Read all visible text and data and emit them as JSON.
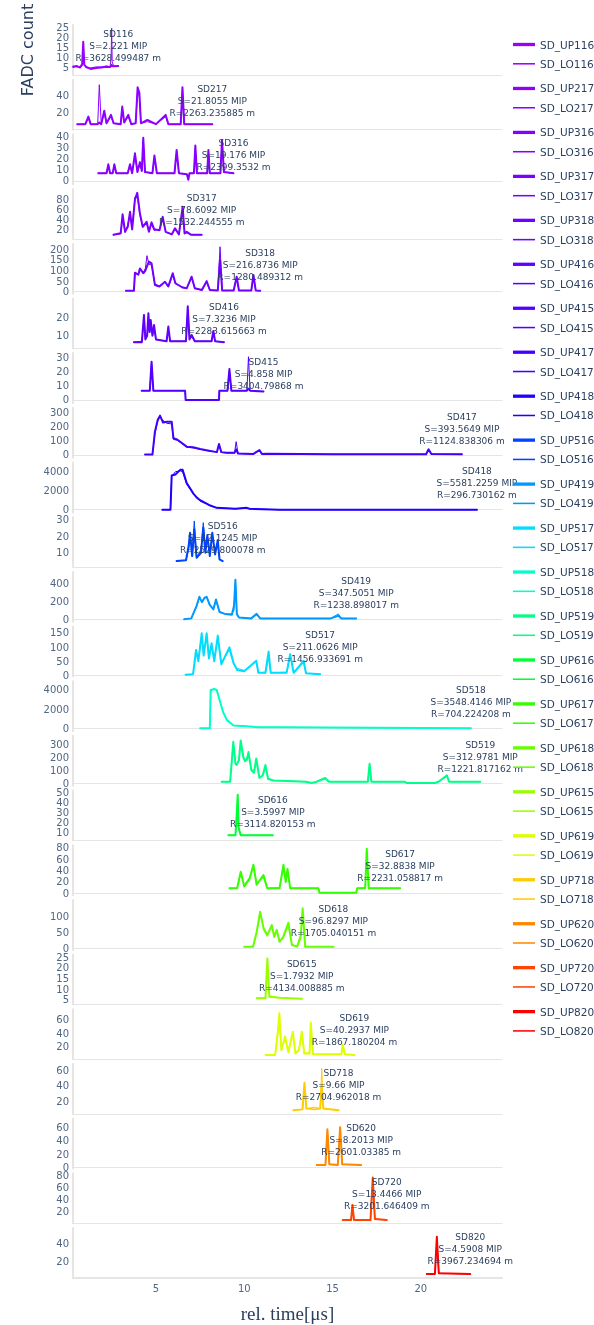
{
  "chart_data": [
    {
      "type": "line",
      "ylabel": "FADC count",
      "legend": "right",
      "marker": "none",
      "tick_labels": "y",
      "xlim": [
        0.3,
        24.6
      ],
      "ylim": [
        1.5,
        26.3
      ],
      "yticks": [
        5,
        10,
        15,
        20,
        25
      ],
      "annotations": [
        "SD116",
        "S=2.221 MIP",
        "R=3628.499487 m"
      ],
      "x": [
        0.31,
        0.5,
        0.7,
        0.82,
        0.88,
        0.94,
        1.05,
        1.3,
        1.6,
        1.9,
        2.2,
        2.4,
        2.46,
        2.49,
        2.52,
        2.6,
        2.86
      ],
      "series": [
        {
          "name": "SD_UP116",
          "color": "#9900ff",
          "values": [
            5.5,
            6,
            5.2,
            7,
            18,
            6.5,
            5.5,
            4.5,
            5,
            5.2,
            5.6,
            5.5,
            6,
            6.5,
            6,
            5.8,
            6
          ]
        },
        {
          "name": "SD_LO116",
          "color": "#9900ff",
          "values": [
            6,
            5.5,
            5.5,
            6,
            16,
            7,
            5,
            5,
            5.5,
            5.5,
            6,
            5.5,
            10,
            24.7,
            8,
            6,
            5.8
          ]
        }
      ]
    },
    {
      "type": "line",
      "legend": "right",
      "marker": "none",
      "tick_labels": "y",
      "xlim": [
        0.3,
        24.6
      ],
      "ylim": [
        -0.6,
        59
      ],
      "yticks": [
        20,
        40
      ],
      "annotations": [
        "SD217",
        "S=21.8055 MIP",
        "R=2263.235885 m"
      ],
      "x": [
        0.54,
        1.0,
        1.17,
        1.3,
        1.7,
        1.79,
        1.9,
        2.07,
        2.2,
        2.45,
        2.6,
        3.0,
        3.09,
        3.2,
        3.43,
        3.6,
        3.85,
        3.96,
        4.06,
        4.15,
        4.51,
        5.0,
        5.55,
        5.7,
        6.4,
        6.5,
        6.6,
        7.3,
        8.19
      ],
      "series": [
        {
          "name": "SD_UP217",
          "color": "#9000ff",
          "values": [
            6,
            6,
            15,
            6,
            6,
            8,
            6,
            22,
            7,
            17,
            7,
            6,
            27,
            8,
            17,
            6,
            7,
            50,
            43,
            7,
            11,
            6,
            17,
            6,
            6,
            50,
            6,
            6,
            6
          ]
        },
        {
          "name": "SD_LO217",
          "color": "#9000ff",
          "values": [
            6,
            6,
            13,
            6,
            6,
            53,
            6,
            20,
            7,
            15,
            7,
            6,
            24,
            8,
            15,
            6,
            7,
            47,
            38,
            7,
            9,
            6,
            15,
            6,
            6,
            48,
            6,
            6,
            6
          ]
        }
      ]
    },
    {
      "type": "line",
      "legend": "right",
      "marker": "none",
      "tick_labels": "y",
      "xlim": [
        0.3,
        24.6
      ],
      "ylim": [
        -3.1,
        42.1
      ],
      "yticks": [
        0,
        10,
        20,
        30,
        40
      ],
      "annotations": [
        "SD316",
        "S=19.176 MIP",
        "R=2399.3532 m"
      ],
      "x": [
        1.73,
        2.2,
        2.3,
        2.4,
        2.55,
        2.64,
        2.75,
        3.4,
        3.53,
        3.65,
        3.81,
        3.95,
        4.09,
        4.2,
        4.28,
        4.38,
        4.8,
        4.91,
        5.05,
        6.05,
        6.17,
        6.3,
        6.75,
        6.83,
        6.9,
        7.15,
        7.23,
        7.32,
        7.9,
        7.97,
        8.05,
        8.65,
        8.74,
        8.85,
        9.39
      ],
      "series": [
        {
          "name": "SD_UP316",
          "color": "#8600ff",
          "values": [
            7,
            7,
            15,
            7,
            7,
            15,
            7,
            7,
            15,
            7,
            25,
            8,
            17,
            9,
            39,
            8,
            7,
            23,
            7,
            7,
            28,
            7,
            6,
            1,
            7,
            7,
            32,
            7,
            7,
            28,
            7,
            7,
            37,
            8,
            7
          ]
        },
        {
          "name": "SD_LO316",
          "color": "#8600ff",
          "values": [
            7,
            7,
            14,
            7,
            7,
            14,
            7,
            7,
            14,
            7,
            23,
            8,
            15,
            9,
            36,
            8,
            7,
            21,
            7,
            7,
            26,
            7,
            6,
            2,
            7,
            7,
            30,
            7,
            7,
            26,
            7,
            7,
            35,
            8,
            7
          ]
        }
      ]
    },
    {
      "type": "line",
      "legend": "right",
      "marker": "none",
      "tick_labels": "y",
      "xlim": [
        0.3,
        24.6
      ],
      "ylim": [
        0.6,
        100.6
      ],
      "yticks": [
        20,
        40,
        60,
        80
      ],
      "annotations": [
        "SD317",
        "S=78.6092 MIP",
        "R=1532.244555 m"
      ],
      "x": [
        2.59,
        3.0,
        3.11,
        3.25,
        3.4,
        3.53,
        3.65,
        3.81,
        3.94,
        4.09,
        4.25,
        4.47,
        4.6,
        4.75,
        4.9,
        5.2,
        5.38,
        5.55,
        5.9,
        6.08,
        6.3,
        6.51,
        6.62,
        6.74,
        7.0,
        7.59
      ],
      "series": [
        {
          "name": "SD_UP317",
          "color": "#7c00ff",
          "values": [
            9,
            12,
            50,
            15,
            25,
            55,
            20,
            80,
            93,
            52,
            25,
            35,
            15,
            34,
            20,
            18,
            45,
            15,
            10,
            22,
            10,
            65,
            12,
            15,
            9,
            9
          ]
        },
        {
          "name": "SD_LO317",
          "color": "#7c00ff",
          "values": [
            9,
            11,
            45,
            14,
            28,
            50,
            22,
            85,
            88,
            48,
            24,
            32,
            16,
            30,
            18,
            20,
            42,
            14,
            11,
            20,
            10,
            60,
            11,
            13,
            9,
            9
          ]
        }
      ]
    },
    {
      "type": "line",
      "legend": "right",
      "marker": "none",
      "tick_labels": "y",
      "xlim": [
        0.3,
        24.6
      ],
      "ylim": [
        -9.4,
        226.4
      ],
      "yticks": [
        0,
        50,
        100,
        150,
        200
      ],
      "annotations": [
        "SD318",
        "S=216.8736 MIP",
        "R=1280.489312 m"
      ],
      "x": [
        3.3,
        3.75,
        3.81,
        4.0,
        4.09,
        4.28,
        4.4,
        4.49,
        4.6,
        4.75,
        4.94,
        5.2,
        5.51,
        5.7,
        5.95,
        6.1,
        6.5,
        6.74,
        7.02,
        7.2,
        7.6,
        7.87,
        8.05,
        8.5,
        8.63,
        8.75,
        9.4,
        9.57,
        9.7,
        10.4,
        10.52,
        10.65,
        10.9
      ],
      "series": [
        {
          "name": "SD_UP318",
          "color": "#7000ff",
          "values": [
            5,
            5,
            90,
            80,
            110,
            87,
            100,
            120,
            142,
            134,
            32,
            25,
            47,
            25,
            87,
            40,
            20,
            16,
            71,
            16,
            8,
            50,
            8,
            6,
            150,
            6,
            6,
            71,
            6,
            6,
            79,
            6,
            5
          ]
        },
        {
          "name": "SD_LO318",
          "color": "#7000ff",
          "values": [
            5,
            5,
            85,
            85,
            105,
            90,
            110,
            170,
            130,
            125,
            35,
            28,
            45,
            22,
            80,
            38,
            22,
            18,
            65,
            15,
            8,
            45,
            8,
            6,
            212,
            6,
            6,
            65,
            6,
            6,
            70,
            6,
            5
          ]
        }
      ]
    },
    {
      "type": "line",
      "legend": "right",
      "marker": "none",
      "tick_labels": "y",
      "xlim": [
        0.3,
        24.6
      ],
      "ylim": [
        3.1,
        30.3
      ],
      "yticks": [
        10,
        20
      ],
      "annotations": [
        "SD416",
        "S=7.3236 MIP",
        "R=2283.615663 m"
      ],
      "x": [
        3.75,
        4.2,
        4.32,
        4.4,
        4.5,
        4.57,
        4.64,
        4.7,
        4.8,
        4.89,
        5.0,
        5.6,
        5.7,
        5.8,
        6.7,
        6.8,
        6.9,
        7.02,
        7.2,
        8.15,
        8.25,
        8.35,
        8.85
      ],
      "series": [
        {
          "name": "SD_UP416",
          "color": "#6200ff",
          "values": [
            6.5,
            6.5,
            21.3,
            8,
            10,
            22.2,
            12,
            18.6,
            10,
            15.8,
            8,
            7,
            15,
            7,
            7,
            26,
            8,
            10.4,
            7,
            7,
            12.6,
            7,
            6.5
          ]
        },
        {
          "name": "SD_LO416",
          "color": "#6200ff",
          "values": [
            6.5,
            7,
            19,
            8,
            11,
            20,
            12,
            17,
            10,
            14,
            8,
            7,
            13,
            7,
            7,
            24,
            8,
            9.5,
            7,
            7,
            11,
            7,
            6.5
          ]
        }
      ]
    },
    {
      "type": "line",
      "legend": "right",
      "marker": "none",
      "tick_labels": "y",
      "xlim": [
        0.3,
        24.6
      ],
      "ylim": [
        -2.2,
        33.3
      ],
      "yticks": [
        0,
        10,
        20,
        30
      ],
      "annotations": [
        "SD415",
        "S=4.858 MIP",
        "R=3404.79868 m"
      ],
      "x": [
        4.19,
        4.65,
        4.75,
        4.85,
        5.5,
        6.65,
        6.68,
        8.57,
        8.59,
        9.05,
        9.16,
        9.27,
        10.15,
        10.24,
        10.33,
        11.09
      ],
      "series": [
        {
          "name": "SD_UP415",
          "color": "#5400ff",
          "values": [
            6.6,
            6.6,
            27.2,
            6.6,
            6.6,
            6.6,
            0,
            0,
            6.6,
            6.6,
            22,
            6.6,
            6.6,
            8,
            6.6,
            6
          ]
        },
        {
          "name": "SD_LO415",
          "color": "#5400ff",
          "values": [
            6.6,
            6.6,
            26,
            6.6,
            6.6,
            6.6,
            0,
            0,
            6.6,
            6.6,
            20,
            6.6,
            6.6,
            30.7,
            6.6,
            6
          ]
        }
      ]
    },
    {
      "type": "line",
      "legend": "right",
      "marker": "none",
      "tick_labels": "y",
      "xlim": [
        0.3,
        24.6
      ],
      "ylim": [
        -20,
        335
      ],
      "yticks": [
        0,
        100,
        200,
        300
      ],
      "annotations": [
        "SD417",
        "S=393.5649 MIP",
        "R=1124.838306 m"
      ],
      "x": [
        4.38,
        4.8,
        4.94,
        5.1,
        5.23,
        5.4,
        5.61,
        5.89,
        5.99,
        6.2,
        6.37,
        6.74,
        7.1,
        7.5,
        8.0,
        8.45,
        8.57,
        8.7,
        9.01,
        9.45,
        9.54,
        9.65,
        10.5,
        10.86,
        11.0,
        11.28,
        15.0,
        20.3,
        20.44,
        20.6,
        22.33
      ],
      "series": [
        {
          "name": "SD_UP417",
          "color": "#4400ff",
          "values": [
            3,
            3,
            165,
            250,
            279,
            230,
            236,
            236,
            118,
            110,
            94,
            59,
            55,
            42,
            30,
            20,
            78,
            20,
            16,
            15,
            40,
            10,
            6,
            35,
            6,
            9,
            5,
            5,
            40,
            6,
            5
          ]
        },
        {
          "name": "SD_LO417",
          "color": "#4400ff",
          "values": [
            3,
            3,
            150,
            240,
            270,
            245,
            225,
            220,
            110,
            105,
            90,
            55,
            50,
            40,
            28,
            22,
            70,
            18,
            14,
            14,
            94,
            10,
            6,
            30,
            6,
            8,
            5,
            5,
            35,
            6,
            5
          ]
        }
      ]
    },
    {
      "type": "line",
      "legend": "right",
      "marker": "none",
      "tick_labels": "y",
      "xlim": [
        0.3,
        24.6
      ],
      "ylim": [
        -284,
        4979
      ],
      "yticks": [
        0,
        2000,
        4000
      ],
      "annotations": [
        "SD418",
        "S=5581.2259 MIP",
        "R=296.730162 m"
      ],
      "x": [
        5.36,
        5.82,
        5.89,
        6.1,
        6.37,
        6.51,
        6.74,
        6.95,
        7.12,
        7.3,
        7.5,
        8.0,
        8.44,
        9.5,
        10.14,
        10.3,
        12.0,
        23.18
      ],
      "series": [
        {
          "name": "SD_UP418",
          "color": "#2200ff",
          "values": [
            0,
            0,
            3600,
            3700,
            4200,
            4200,
            2800,
            2200,
            1700,
            1300,
            1000,
            500,
            200,
            100,
            200,
            100,
            0,
            0
          ]
        },
        {
          "name": "SD_LO418",
          "color": "#2200ff",
          "values": [
            0,
            0,
            3500,
            4000,
            4100,
            4000,
            2700,
            2200,
            1700,
            1300,
            900,
            500,
            200,
            100,
            200,
            100,
            0,
            0
          ]
        }
      ]
    },
    {
      "type": "line",
      "legend": "right",
      "marker": "none",
      "tick_labels": "y",
      "xlim": [
        0.3,
        24.6
      ],
      "ylim": [
        1.4,
        31.3
      ],
      "yticks": [
        10,
        20,
        30
      ],
      "annotations": [
        "SD516",
        "S=12.1245 MIP",
        "R=2529.800078 m"
      ],
      "x": [
        6.17,
        6.7,
        6.85,
        6.93,
        7.05,
        7.17,
        7.3,
        7.55,
        7.68,
        7.8,
        7.91,
        8.05,
        8.19,
        8.35,
        8.5,
        8.6,
        8.78
      ],
      "series": [
        {
          "name": "SD_UP516",
          "color": "#0044ff",
          "values": [
            5,
            5.5,
            14,
            22,
            8,
            24,
            7,
            10,
            25,
            10,
            20.6,
            8,
            22,
            9,
            17.6,
            6,
            5
          ]
        },
        {
          "name": "SD_LO516",
          "color": "#0044ff",
          "values": [
            5,
            5.5,
            12,
            20,
            9,
            29,
            7,
            12,
            28,
            11,
            19,
            9,
            20,
            10,
            15,
            6,
            5
          ]
        }
      ]
    },
    {
      "type": "line",
      "legend": "right",
      "marker": "none",
      "tick_labels": "y",
      "xlim": [
        0.3,
        24.6
      ],
      "ylim": [
        -28,
        528
      ],
      "yticks": [
        0,
        200,
        400
      ],
      "annotations": [
        "SD419",
        "S=347.5051 MIP",
        "R=1238.898017 m"
      ],
      "x": [
        6.6,
        7.0,
        7.3,
        7.46,
        7.6,
        7.75,
        7.87,
        8.05,
        8.25,
        8.4,
        8.6,
        8.9,
        9.3,
        9.42,
        9.5,
        9.58,
        9.7,
        10.4,
        10.7,
        10.9,
        12,
        14.9,
        15.33,
        15.5,
        16.34
      ],
      "series": [
        {
          "name": "SD_UP419",
          "color": "#0099ff",
          "values": [
            0,
            10,
            150,
            250,
            190,
            240,
            250,
            160,
            110,
            220,
            80,
            60,
            50,
            150,
            440,
            60,
            20,
            10,
            60,
            10,
            10,
            10,
            40,
            10,
            10
          ]
        },
        {
          "name": "SD_LO419",
          "color": "#0099ff",
          "values": [
            0,
            10,
            140,
            240,
            200,
            230,
            250,
            150,
            120,
            200,
            90,
            60,
            60,
            100,
            420,
            50,
            20,
            10,
            50,
            10,
            10,
            10,
            60,
            10,
            10
          ]
        }
      ]
    },
    {
      "type": "line",
      "legend": "right",
      "marker": "none",
      "tick_labels": "y",
      "xlim": [
        0.3,
        24.6
      ],
      "ylim": [
        -3,
        172
      ],
      "yticks": [
        0,
        50,
        100,
        150
      ],
      "annotations": [
        "SD517",
        "S=211.0626 MIP",
        "R=1456.933691 m"
      ],
      "x": [
        6.68,
        7.1,
        7.27,
        7.4,
        7.59,
        7.7,
        7.87,
        8.0,
        8.15,
        8.3,
        8.5,
        8.7,
        9.16,
        9.4,
        9.6,
        10.0,
        10.68,
        10.8,
        11.2,
        11.38,
        11.5,
        12.4,
        12.6,
        12.8,
        13.36,
        13.5,
        14.3
      ],
      "series": [
        {
          "name": "SD_UP517",
          "color": "#00ddff",
          "values": [
            3,
            5,
            90,
            50,
            148,
            70,
            148,
            60,
            113,
            50,
            140,
            40,
            99,
            43,
            20,
            15,
            52,
            10,
            10,
            84,
            10,
            10,
            75,
            10,
            52,
            8,
            5
          ]
        },
        {
          "name": "SD_LO517",
          "color": "#00ddff",
          "values": [
            3,
            5,
            80,
            55,
            140,
            80,
            135,
            65,
            105,
            55,
            130,
            45,
            90,
            40,
            25,
            18,
            48,
            10,
            12,
            60,
            10,
            12,
            70,
            10,
            45,
            8,
            5
          ]
        }
      ]
    },
    {
      "type": "line",
      "legend": "right",
      "marker": "none",
      "tick_labels": "y",
      "xlim": [
        0.3,
        24.6
      ],
      "ylim": [
        -300,
        4920
      ],
      "yticks": [
        0,
        2000,
        4000
      ],
      "annotations": [
        "SD518",
        "S=3548.4146 MIP",
        "R=704.224208 m"
      ],
      "x": [
        7.5,
        8.05,
        8.1,
        8.3,
        8.44,
        8.63,
        8.8,
        9.01,
        9.39,
        10.14,
        10.9,
        12,
        22.84
      ],
      "series": [
        {
          "name": "SD_UP518",
          "color": "#00ffcc",
          "values": [
            0,
            0,
            4000,
            4100,
            4000,
            2800,
            1700,
            900,
            300,
            200,
            100,
            100,
            0
          ]
        },
        {
          "name": "SD_LO518",
          "color": "#00ffcc",
          "values": [
            0,
            0,
            3900,
            4100,
            4000,
            2700,
            1700,
            800,
            300,
            200,
            100,
            100,
            0
          ]
        }
      ]
    },
    {
      "type": "line",
      "legend": "right",
      "marker": "none",
      "tick_labels": "y",
      "xlim": [
        0.3,
        24.6
      ],
      "ylim": [
        -22,
        366
      ],
      "yticks": [
        0,
        100,
        200,
        300
      ],
      "annotations": [
        "SD519",
        "S=312.9781 MIP",
        "R=1221.817162 m"
      ],
      "x": [
        8.72,
        9.2,
        9.38,
        9.5,
        9.57,
        9.7,
        9.8,
        9.95,
        10.04,
        10.15,
        10.24,
        10.4,
        10.55,
        10.68,
        10.86,
        11.05,
        11.2,
        11.35,
        11.66,
        13.5,
        13.82,
        14.1,
        14.58,
        14.8,
        17.0,
        17.1,
        17.2,
        19.1,
        19.2,
        20.8,
        21.0,
        21.48,
        21.6,
        23.37
      ],
      "series": [
        {
          "name": "SD_UP519",
          "color": "#00ff88",
          "values": [
            10,
            10,
            320,
            150,
            140,
            180,
            330,
            200,
            170,
            180,
            240,
            100,
            80,
            190,
            40,
            60,
            140,
            30,
            20,
            10,
            0,
            10,
            40,
            10,
            10,
            150,
            10,
            10,
            0,
            0,
            10,
            60,
            10,
            10
          ]
        },
        {
          "name": "SD_LO519",
          "color": "#00ff88",
          "values": [
            10,
            10,
            300,
            160,
            150,
            170,
            320,
            190,
            170,
            200,
            220,
            110,
            90,
            170,
            40,
            60,
            120,
            40,
            20,
            10,
            0,
            10,
            30,
            10,
            10,
            140,
            10,
            10,
            0,
            0,
            10,
            50,
            10,
            10
          ]
        }
      ]
    },
    {
      "type": "line",
      "legend": "right",
      "marker": "none",
      "tick_labels": "y",
      "xlim": [
        0.3,
        24.6
      ],
      "ylim": [
        1.7,
        52.2
      ],
      "yticks": [
        10,
        20,
        30,
        40,
        50
      ],
      "annotations": [
        "SD616",
        "S=3.5997 MIP",
        "R=3114.820153 m"
      ],
      "x": [
        9.1,
        9.5,
        9.58,
        9.63,
        9.68,
        9.8,
        10.5,
        11.62
      ],
      "series": [
        {
          "name": "SD_UP616",
          "color": "#00ff33",
          "values": [
            7,
            7,
            30,
            48,
            15,
            7,
            7,
            7
          ]
        },
        {
          "name": "SD_LO616",
          "color": "#00ff33",
          "values": [
            7,
            7,
            25,
            44,
            14,
            7,
            7,
            7
          ]
        }
      ]
    },
    {
      "type": "line",
      "legend": "right",
      "marker": "none",
      "tick_labels": "y",
      "xlim": [
        0.3,
        24.6
      ],
      "ylim": [
        -3.3,
        84.4
      ],
      "yticks": [
        0,
        20,
        40,
        60,
        80
      ],
      "annotations": [
        "SD617",
        "S=32.8838 MIP",
        "R=2231.058817 m"
      ],
      "x": [
        9.16,
        9.6,
        9.8,
        10.0,
        10.3,
        10.52,
        10.7,
        11.09,
        11.3,
        12.0,
        12.22,
        12.35,
        12.45,
        12.6,
        14.2,
        14.26,
        16.34,
        16.4,
        16.85,
        16.94,
        17.05,
        18.83
      ],
      "series": [
        {
          "name": "SD_UP617",
          "color": "#33ff00",
          "values": [
            9,
            9,
            38,
            12,
            25,
            50,
            15,
            32,
            9,
            9,
            50,
            20,
            43,
            9,
            9,
            1,
            1,
            9,
            9,
            78,
            9,
            9
          ]
        },
        {
          "name": "SD_LO617",
          "color": "#33ff00",
          "values": [
            9,
            9,
            34,
            15,
            28,
            46,
            18,
            28,
            9,
            10,
            46,
            22,
            40,
            9,
            9,
            1,
            1,
            9,
            10,
            70,
            9,
            9
          ]
        }
      ]
    },
    {
      "type": "line",
      "legend": "right",
      "marker": "none",
      "tick_labels": "y",
      "xlim": [
        0.3,
        24.6
      ],
      "ylim": [
        -5,
        150
      ],
      "yticks": [
        0,
        50,
        100
      ],
      "annotations": [
        "SD618",
        "S=96.8297 MIP",
        "R=1705.040151 m"
      ],
      "x": [
        10.0,
        10.5,
        10.7,
        10.9,
        11.1,
        11.3,
        11.56,
        11.7,
        11.84,
        12.0,
        12.2,
        12.5,
        12.7,
        13.0,
        13.2,
        13.31,
        13.45,
        15.05
      ],
      "series": [
        {
          "name": "SD_UP618",
          "color": "#66ff00",
          "values": [
            5,
            5,
            50,
            113,
            60,
            40,
            72,
            35,
            57,
            20,
            35,
            79,
            10,
            5,
            40,
            124,
            5,
            5
          ]
        },
        {
          "name": "SD_LO618",
          "color": "#66ff00",
          "values": [
            5,
            5,
            45,
            105,
            65,
            45,
            65,
            40,
            52,
            25,
            30,
            70,
            12,
            5,
            30,
            110,
            5,
            5
          ]
        }
      ]
    },
    {
      "type": "line",
      "legend": "right",
      "marker": "none",
      "tick_labels": "y",
      "xlim": [
        0.3,
        24.6
      ],
      "ylim": [
        2.8,
        26.3
      ],
      "yticks": [
        5,
        10,
        15,
        20,
        25
      ],
      "annotations": [
        "SD615",
        "S=1.7932 MIP",
        "R=4134.008885 m"
      ],
      "x": [
        10.71,
        11.2,
        11.31,
        11.42,
        12.0,
        13.26
      ],
      "series": [
        {
          "name": "SD_UP615",
          "color": "#99ff00",
          "values": [
            5.8,
            5.8,
            24.5,
            6.5,
            6,
            5.5
          ]
        },
        {
          "name": "SD_LO615",
          "color": "#99ff00",
          "values": [
            5.8,
            6,
            22,
            7,
            6,
            5.5
          ]
        }
      ]
    },
    {
      "type": "line",
      "legend": "right",
      "marker": "none",
      "tick_labels": "y",
      "xlim": [
        0.3,
        24.6
      ],
      "ylim": [
        1.8,
        74.7
      ],
      "yticks": [
        20,
        40,
        60
      ],
      "annotations": [
        "SD619",
        "S=40.2937 MIP",
        "R=1867.180204 m"
      ],
      "x": [
        11.21,
        11.75,
        11.9,
        11.99,
        12.1,
        12.31,
        12.5,
        12.75,
        12.9,
        13.1,
        13.26,
        13.4,
        13.7,
        13.77,
        13.9,
        15.5,
        15.58,
        15.7,
        16.24
      ],
      "series": [
        {
          "name": "SD_UP619",
          "color": "#ddff00",
          "values": [
            8,
            8,
            40,
            69,
            15,
            35,
            12,
            42,
            10,
            15,
            42,
            10,
            10,
            55,
            9,
            9,
            23,
            9,
            8
          ]
        },
        {
          "name": "SD_LO619",
          "color": "#ddff00",
          "values": [
            8,
            8,
            45,
            60,
            18,
            30,
            14,
            38,
            12,
            17,
            40,
            10,
            12,
            50,
            9,
            9,
            18,
            9,
            8
          ]
        }
      ]
    },
    {
      "type": "line",
      "legend": "right",
      "marker": "none",
      "tick_labels": "y",
      "xlim": [
        0.3,
        24.6
      ],
      "ylim": [
        3,
        69
      ],
      "yticks": [
        20,
        40,
        60
      ],
      "annotations": [
        "SD718",
        "S=9.66 MIP",
        "R=2704.962018 m"
      ],
      "x": [
        12.79,
        13.3,
        13.41,
        13.52,
        14.0,
        14.3,
        14.39,
        14.48,
        15.34
      ],
      "series": [
        {
          "name": "SD_UP718",
          "color": "#ffcc00",
          "values": [
            8,
            9,
            44,
            10,
            9,
            10,
            40,
            10,
            8
          ]
        },
        {
          "name": "SD_LO718",
          "color": "#ffcc00",
          "values": [
            8,
            9,
            38,
            10,
            12,
            10,
            63,
            10,
            8
          ]
        }
      ]
    },
    {
      "type": "line",
      "legend": "right",
      "marker": "none",
      "tick_labels": "y",
      "xlim": [
        0.3,
        24.6
      ],
      "ylim": [
        -1.3,
        72.9
      ],
      "yticks": [
        0,
        20,
        40,
        60
      ],
      "annotations": [
        "SD620",
        "S=8.2013 MIP",
        "R=2601.03385 m"
      ],
      "x": [
        14.11,
        14.6,
        14.71,
        14.82,
        15.3,
        15.43,
        15.55,
        16.62
      ],
      "series": [
        {
          "name": "SD_UP620",
          "color": "#ff8800",
          "values": [
            4,
            4,
            57,
            5,
            4,
            60,
            5,
            4
          ]
        },
        {
          "name": "SD_LO620",
          "color": "#ff8800",
          "values": [
            4,
            4,
            52,
            5,
            4,
            55,
            5,
            4
          ]
        }
      ]
    },
    {
      "type": "line",
      "legend": "right",
      "marker": "none",
      "tick_labels": "y",
      "xlim": [
        0.3,
        24.6
      ],
      "ylim": [
        0.7,
        84
      ],
      "yticks": [
        20,
        40,
        60,
        80
      ],
      "annotations": [
        "SD720",
        "S=13.4466 MIP",
        "R=3201.646409 m"
      ],
      "x": [
        15.58,
        16.05,
        16.13,
        16.22,
        17.15,
        17.28,
        17.4,
        18.07
      ],
      "series": [
        {
          "name": "SD_UP720",
          "color": "#ff4400",
          "values": [
            6,
            6,
            31,
            6,
            6,
            77,
            8,
            6
          ]
        },
        {
          "name": "SD_LO720",
          "color": "#ff4400",
          "values": [
            6,
            6,
            28,
            6,
            6,
            70,
            8,
            6
          ]
        }
      ]
    },
    {
      "type": "line",
      "legend": "right",
      "marker": "none",
      "xlabel": "rel. time[μs]",
      "xlim": [
        0.3,
        24.6
      ],
      "xticks": [
        5,
        10,
        15,
        20
      ],
      "ylim": [
        1.6,
        58
      ],
      "yticks": [
        20,
        40
      ],
      "annotations": [
        "SD820",
        "S=4.5908 MIP",
        "R=3967.234694 m"
      ],
      "x": [
        20.34,
        20.8,
        20.91,
        21.02,
        22.8
      ],
      "series": [
        {
          "name": "SD_UP820",
          "color": "#ff0000",
          "values": [
            6,
            6,
            48,
            7,
            6
          ]
        },
        {
          "name": "SD_LO820",
          "color": "#ff0000",
          "values": [
            6,
            6,
            44,
            7,
            6
          ]
        }
      ]
    }
  ]
}
